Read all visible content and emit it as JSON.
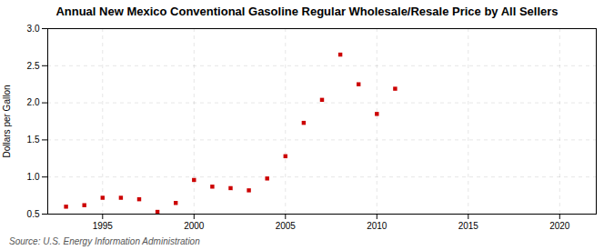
{
  "chart_data": {
    "type": "scatter",
    "title": "Annual New Mexico Conventional Gasoline Regular Wholesale/Resale Price by All Sellers",
    "ylabel": "Dollars per Gallon",
    "annotation": "Source: U.S. Energy Information Administration",
    "x": [
      1993,
      1994,
      1995,
      1996,
      1997,
      1998,
      1999,
      2000,
      2001,
      2002,
      2003,
      2004,
      2005,
      2006,
      2007,
      2008,
      2009,
      2010,
      2011
    ],
    "values": [
      0.6,
      0.62,
      0.72,
      0.72,
      0.7,
      0.53,
      0.65,
      0.96,
      0.87,
      0.85,
      0.82,
      0.98,
      1.28,
      1.73,
      2.04,
      2.65,
      2.25,
      1.85,
      2.19
    ],
    "color": "#cc0000",
    "marker": "square",
    "xlim": [
      1992,
      2022
    ],
    "xticks": [
      1995,
      2000,
      2005,
      2010,
      2015,
      2020
    ],
    "ylim": [
      0.5,
      3.0
    ],
    "yticks": [
      0.5,
      {
        "value": 1.0,
        "label": "1.0"
      },
      1.5,
      {
        "value": 2.0,
        "label": "2.0"
      },
      2.5,
      {
        "value": 3.0,
        "label": "3.0"
      }
    ],
    "grid": true
  }
}
